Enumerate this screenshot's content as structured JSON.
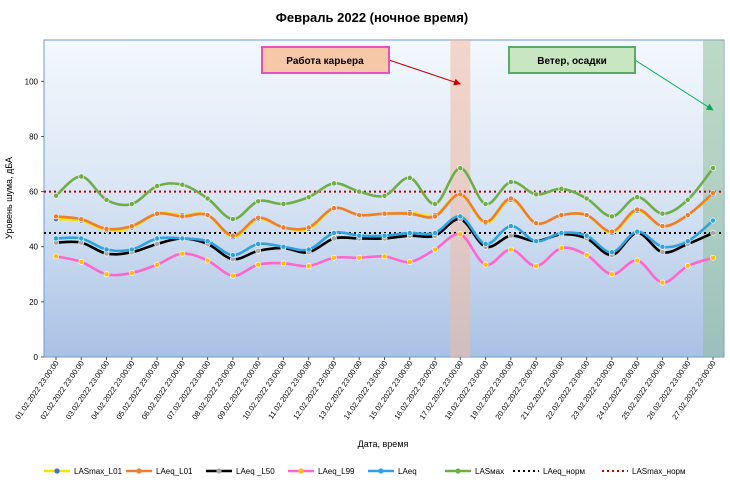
{
  "chart_data": {
    "type": "line",
    "title": "Февраль 2022 (ночное время)",
    "xlabel": "Дата, время",
    "ylabel": "Уровень шума, дБА",
    "ylim": [
      0,
      115
    ],
    "yticks": [
      0,
      20,
      40,
      60,
      80,
      100
    ],
    "grid": false,
    "legend_position": "bottom",
    "categories": [
      "01.02.2022 23:00:00",
      "02.02.2022 23:00:00",
      "03.02.2022 23:00:00",
      "04.02.2022 23:00:00",
      "05.02.2022 23:00:00",
      "06.02.2022 23:00:00",
      "07.02.2022 23:00:00",
      "08.02.2022 23:00:00",
      "09.02.2022 23:00:00",
      "10.02.2022 23:00:00",
      "11.02.2022 23:00:00",
      "12.02.2022 23:00:00",
      "13.02.2022 23:00:00",
      "14.02.2022 23:00:00",
      "15.02.2022 23:00:00",
      "16.02.2022 23:00:00",
      "17.02.2022 23:00:00",
      "18.02.2022 23:00:00",
      "19.02.2022 23:00:00",
      "20.02.2022 23:00:00",
      "21.02.2022 23:00:00",
      "22.02.2022 23:00:00",
      "23.02.2022 23:00:00",
      "24.02.2022 23:00:00",
      "25.02.2022 23:00:00",
      "26.02.2022 23:00:00",
      "27.02.2022 23:00:00"
    ],
    "series": [
      {
        "name": "LASmax_L01",
        "color": "#f5e600",
        "marker_color": "#4472c4",
        "values": [
          50,
          49.5,
          46,
          47,
          52,
          51.5,
          51.5,
          43.5,
          50,
          47,
          46.5,
          54,
          51.5,
          52,
          52.5,
          51.5,
          59,
          48.5,
          57,
          48.5,
          51.5,
          51.5,
          45,
          53,
          47.5,
          51.5,
          59
        ]
      },
      {
        "name": "LAeq_L01",
        "color": "#ed7d31",
        "marker_color": "#ed7d31",
        "values": [
          51,
          50,
          46.5,
          47.5,
          52,
          51,
          51.5,
          44,
          50.5,
          47,
          47,
          54,
          51.5,
          52,
          52,
          51,
          59,
          49,
          57.5,
          48.5,
          51.5,
          51.5,
          45.5,
          53.5,
          47.5,
          51.5,
          59.5
        ]
      },
      {
        "name": "LAeq _L50",
        "color": "#000000",
        "marker_color": "#a5a5a5",
        "values": [
          41.5,
          41.5,
          37.5,
          38,
          41,
          43,
          41,
          35.5,
          38.5,
          39.5,
          38,
          43,
          43,
          43,
          44,
          44,
          50,
          40,
          44,
          42,
          44.5,
          43,
          37,
          45,
          38,
          41,
          45
        ]
      },
      {
        "name": "LAeq_L99",
        "color": "#ff66cc",
        "marker_color": "#ffc000",
        "values": [
          36.5,
          34.5,
          30,
          30.5,
          33.5,
          37.5,
          35,
          29.5,
          33.5,
          34,
          33,
          36,
          36,
          36.5,
          34.5,
          39,
          44.5,
          33.5,
          39,
          33,
          39.5,
          37,
          30,
          35,
          27,
          33,
          36
        ]
      },
      {
        "name": "LAeq",
        "color": "#2ea3e0",
        "marker_color": "#2ea3e0",
        "values": [
          43,
          43,
          39,
          39,
          43,
          43,
          42,
          37,
          41,
          40,
          39,
          45,
          44,
          44,
          45,
          45,
          51,
          41,
          47.5,
          42,
          45,
          44,
          38,
          45.5,
          40,
          42,
          49.5
        ]
      },
      {
        "name": "LASмах",
        "color": "#70ad47",
        "marker_color": "#70ad47",
        "values": [
          58.5,
          65.5,
          57,
          55.5,
          62,
          62.5,
          57.5,
          50,
          56.5,
          55.5,
          58,
          63,
          60,
          58.5,
          65,
          55.5,
          68.5,
          55.5,
          63.5,
          59,
          61,
          57.5,
          51,
          58,
          52,
          57,
          68.5
        ]
      }
    ],
    "reference_lines": [
      {
        "name": "LAeq_норм",
        "value": 45,
        "color": "#000000"
      },
      {
        "name": "LASmax_норм",
        "value": 60,
        "color": "#c00000"
      }
    ],
    "annotations": [
      {
        "text": "Работа карьера",
        "category_index": 16,
        "fill": "#f7c8a8",
        "border": "#e84fc0",
        "arrow_color": "#c00000",
        "band_color": "#f3b9a0"
      },
      {
        "text": "Ветер, осадки",
        "category_index": 26,
        "fill": "#c8e6c0",
        "border": "#5aaa6a",
        "arrow_color": "#00b050",
        "band_color": "#8fbf9a"
      }
    ]
  }
}
